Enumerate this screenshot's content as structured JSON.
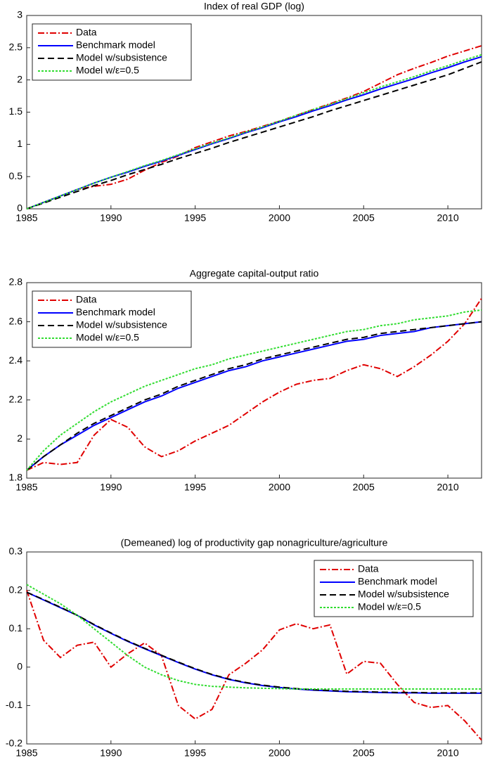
{
  "chart_data": [
    {
      "type": "line",
      "title": "Index of real GDP (log)",
      "x": [
        1985,
        1986,
        1987,
        1988,
        1989,
        1990,
        1991,
        1992,
        1993,
        1994,
        1995,
        1996,
        1997,
        1998,
        1999,
        2000,
        2001,
        2002,
        2003,
        2004,
        2005,
        2006,
        2007,
        2008,
        2009,
        2010,
        2011,
        2012
      ],
      "xlim": [
        1985,
        2012
      ],
      "xticks": [
        1985,
        1990,
        1995,
        2000,
        2005,
        2010
      ],
      "ylim": [
        0,
        3
      ],
      "yticks": [
        0,
        0.5,
        1,
        1.5,
        2,
        2.5,
        3
      ],
      "grid": false,
      "legend": "upper-left",
      "series": [
        {
          "name": "Data",
          "color": "#e00000",
          "style": "dashdot",
          "values": [
            0,
            0.1,
            0.2,
            0.3,
            0.35,
            0.38,
            0.46,
            0.6,
            0.72,
            0.82,
            0.95,
            1.04,
            1.13,
            1.2,
            1.28,
            1.36,
            1.45,
            1.54,
            1.63,
            1.72,
            1.82,
            1.95,
            2.08,
            2.18,
            2.27,
            2.37,
            2.45,
            2.53
          ]
        },
        {
          "name": "Benchmark model",
          "color": "#0000ff",
          "style": "solid",
          "values": [
            0,
            0.1,
            0.2,
            0.3,
            0.4,
            0.49,
            0.57,
            0.66,
            0.74,
            0.83,
            0.92,
            1.01,
            1.09,
            1.18,
            1.26,
            1.35,
            1.43,
            1.52,
            1.6,
            1.69,
            1.77,
            1.86,
            1.94,
            2.02,
            2.11,
            2.19,
            2.28,
            2.36
          ]
        },
        {
          "name": "Model w/subsistence",
          "color": "#000000",
          "style": "dashed",
          "values": [
            0,
            0.09,
            0.18,
            0.27,
            0.36,
            0.44,
            0.53,
            0.61,
            0.69,
            0.78,
            0.86,
            0.94,
            1.03,
            1.11,
            1.19,
            1.27,
            1.35,
            1.43,
            1.52,
            1.6,
            1.68,
            1.76,
            1.84,
            1.92,
            2.0,
            2.08,
            2.18,
            2.28
          ]
        },
        {
          "name": "Model w/ε=0.5",
          "color": "#33dd33",
          "style": "dotted",
          "values": [
            0,
            0.1,
            0.2,
            0.3,
            0.4,
            0.49,
            0.58,
            0.67,
            0.75,
            0.84,
            0.93,
            1.02,
            1.1,
            1.19,
            1.27,
            1.36,
            1.45,
            1.54,
            1.62,
            1.71,
            1.8,
            1.89,
            1.97,
            2.05,
            2.14,
            2.22,
            2.31,
            2.39
          ]
        }
      ]
    },
    {
      "type": "line",
      "title": "Aggregate capital-output ratio",
      "x": [
        1985,
        1986,
        1987,
        1988,
        1989,
        1990,
        1991,
        1992,
        1993,
        1994,
        1995,
        1996,
        1997,
        1998,
        1999,
        2000,
        2001,
        2002,
        2003,
        2004,
        2005,
        2006,
        2007,
        2008,
        2009,
        2010,
        2011,
        2012
      ],
      "xlim": [
        1985,
        2012
      ],
      "xticks": [
        1985,
        1990,
        1995,
        2000,
        2005,
        2010
      ],
      "ylim": [
        1.8,
        2.8
      ],
      "yticks": [
        1.8,
        2,
        2.2,
        2.4,
        2.6,
        2.8
      ],
      "grid": false,
      "legend": "upper-left",
      "series": [
        {
          "name": "Data",
          "color": "#e00000",
          "style": "dashdot",
          "values": [
            1.84,
            1.88,
            1.87,
            1.88,
            2.02,
            2.1,
            2.06,
            1.96,
            1.91,
            1.94,
            1.99,
            2.03,
            2.07,
            2.13,
            2.19,
            2.24,
            2.28,
            2.3,
            2.31,
            2.35,
            2.38,
            2.36,
            2.32,
            2.37,
            2.43,
            2.5,
            2.59,
            2.72
          ]
        },
        {
          "name": "Benchmark model",
          "color": "#0000ff",
          "style": "solid",
          "values": [
            1.84,
            1.91,
            1.97,
            2.02,
            2.07,
            2.11,
            2.15,
            2.19,
            2.22,
            2.26,
            2.29,
            2.32,
            2.35,
            2.37,
            2.4,
            2.42,
            2.44,
            2.46,
            2.48,
            2.5,
            2.51,
            2.53,
            2.54,
            2.55,
            2.57,
            2.58,
            2.59,
            2.6
          ]
        },
        {
          "name": "Model w/subsistence",
          "color": "#000000",
          "style": "dashed",
          "values": [
            1.84,
            1.91,
            1.97,
            2.03,
            2.08,
            2.12,
            2.16,
            2.2,
            2.23,
            2.27,
            2.3,
            2.33,
            2.36,
            2.38,
            2.41,
            2.43,
            2.45,
            2.47,
            2.49,
            2.51,
            2.52,
            2.54,
            2.55,
            2.56,
            2.57,
            2.58,
            2.59,
            2.6
          ]
        },
        {
          "name": "Model w/ε=0.5",
          "color": "#33dd33",
          "style": "dotted",
          "values": [
            1.84,
            1.94,
            2.02,
            2.08,
            2.14,
            2.19,
            2.23,
            2.27,
            2.3,
            2.33,
            2.36,
            2.38,
            2.41,
            2.43,
            2.45,
            2.47,
            2.49,
            2.51,
            2.53,
            2.55,
            2.56,
            2.58,
            2.59,
            2.61,
            2.62,
            2.63,
            2.65,
            2.66
          ]
        }
      ]
    },
    {
      "type": "line",
      "title": "(Demeaned) log of productivity gap nonagriculture/agriculture",
      "x": [
        1985,
        1986,
        1987,
        1988,
        1989,
        1990,
        1991,
        1992,
        1993,
        1994,
        1995,
        1996,
        1997,
        1998,
        1999,
        2000,
        2001,
        2002,
        2003,
        2004,
        2005,
        2006,
        2007,
        2008,
        2009,
        2010,
        2011,
        2012
      ],
      "xlim": [
        1985,
        2012
      ],
      "xticks": [
        1985,
        1990,
        1995,
        2000,
        2005,
        2010
      ],
      "ylim": [
        -0.2,
        0.3
      ],
      "yticks": [
        -0.2,
        -0.1,
        0,
        0.1,
        0.2,
        0.3
      ],
      "grid": false,
      "legend": "upper-right",
      "series": [
        {
          "name": "Data",
          "color": "#e00000",
          "style": "dashdot",
          "values": [
            0.2,
            0.07,
            0.025,
            0.057,
            0.065,
            0,
            0.035,
            0.063,
            0.03,
            -0.1,
            -0.135,
            -0.11,
            -0.02,
            0.01,
            0.045,
            0.097,
            0.113,
            0.1,
            0.11,
            -0.018,
            0.015,
            0.01,
            -0.045,
            -0.092,
            -0.105,
            -0.1,
            -0.14,
            -0.19
          ]
        },
        {
          "name": "Benchmark model",
          "color": "#0000ff",
          "style": "solid",
          "values": [
            0.195,
            0.175,
            0.155,
            0.135,
            0.11,
            0.088,
            0.067,
            0.048,
            0.03,
            0.012,
            -0.005,
            -0.02,
            -0.032,
            -0.041,
            -0.048,
            -0.053,
            -0.057,
            -0.06,
            -0.062,
            -0.064,
            -0.065,
            -0.066,
            -0.067,
            -0.067,
            -0.068,
            -0.068,
            -0.068,
            -0.068
          ]
        },
        {
          "name": "Model w/subsistence",
          "color": "#000000",
          "style": "dashed",
          "values": [
            0.195,
            0.176,
            0.156,
            0.135,
            0.111,
            0.089,
            0.068,
            0.049,
            0.031,
            0.013,
            -0.004,
            -0.019,
            -0.031,
            -0.04,
            -0.047,
            -0.052,
            -0.056,
            -0.059,
            -0.061,
            -0.063,
            -0.064,
            -0.065,
            -0.066,
            -0.066,
            -0.067,
            -0.067,
            -0.067,
            -0.067
          ]
        },
        {
          "name": "Model w/ε=0.5",
          "color": "#33dd33",
          "style": "dotted",
          "values": [
            0.215,
            0.19,
            0.165,
            0.135,
            0.1,
            0.065,
            0.03,
            0,
            -0.02,
            -0.035,
            -0.045,
            -0.05,
            -0.052,
            -0.054,
            -0.055,
            -0.056,
            -0.057,
            -0.057,
            -0.057,
            -0.057,
            -0.057,
            -0.057,
            -0.057,
            -0.057,
            -0.057,
            -0.057,
            -0.057,
            -0.057
          ]
        }
      ]
    }
  ]
}
